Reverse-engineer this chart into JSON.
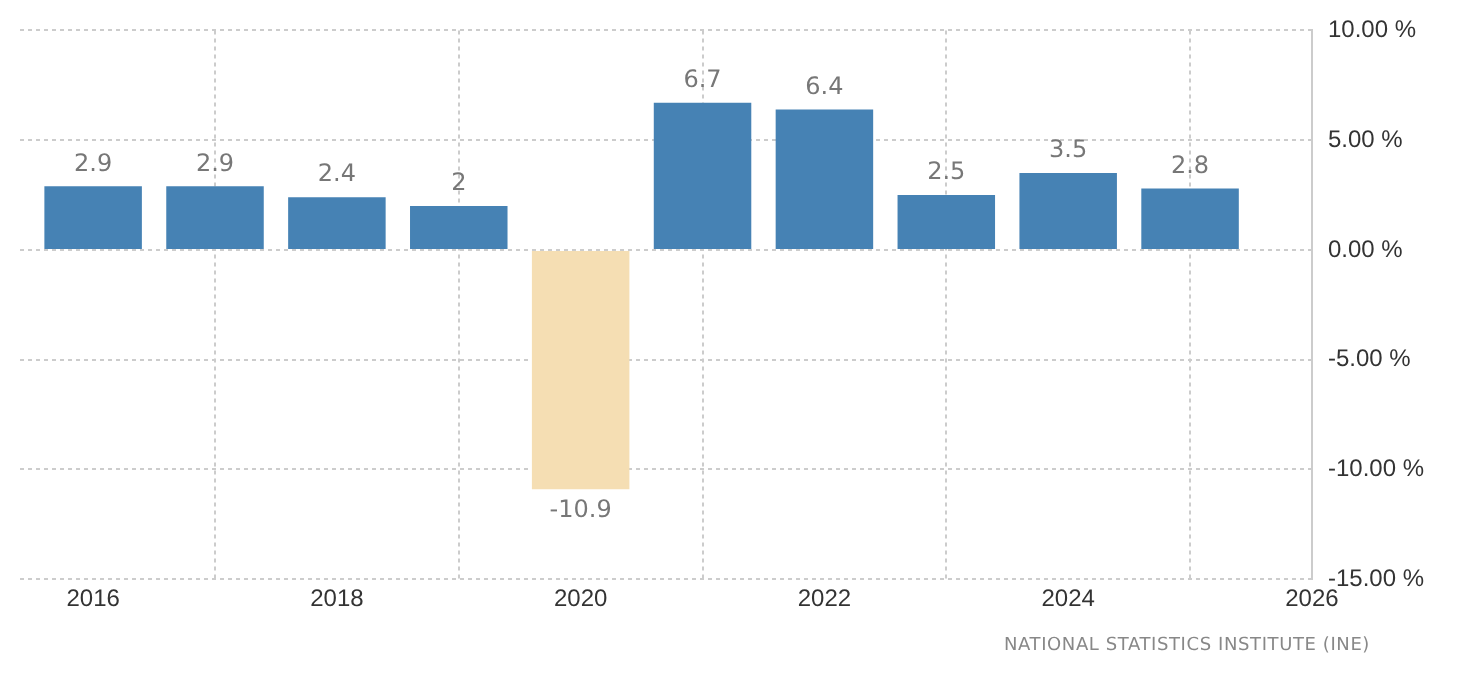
{
  "chart_data": {
    "type": "bar",
    "x": [
      2016,
      2017,
      2018,
      2019,
      2020,
      2021,
      2022,
      2023,
      2024,
      2025
    ],
    "values": [
      2.9,
      2.9,
      2.4,
      2,
      -10.9,
      6.7,
      6.4,
      2.5,
      3.5,
      2.8
    ],
    "colors": [
      "#4682b4",
      "#4682b4",
      "#4682b4",
      "#4682b4",
      "#f5deb3",
      "#4682b4",
      "#4682b4",
      "#4682b4",
      "#4682b4",
      "#4682b4"
    ],
    "xlim": [
      2015.4,
      2026
    ],
    "xticks": [
      2016,
      2018,
      2020,
      2022,
      2024,
      2026
    ],
    "ylim": [
      -15,
      10
    ],
    "yticks": [
      {
        "value": 10,
        "label": "10.00 %"
      },
      {
        "value": 5,
        "label": "5.00 %"
      },
      {
        "value": 0,
        "label": "0.00 %"
      },
      {
        "value": -5,
        "label": "-5.00 %"
      },
      {
        "value": -10,
        "label": "-10.00 %"
      },
      {
        "value": -15,
        "label": "-15.00 %"
      }
    ],
    "grid": true,
    "data_labels": true,
    "annotations": [
      "NATIONAL STATISTICS INSTITUTE (INE)"
    ]
  }
}
